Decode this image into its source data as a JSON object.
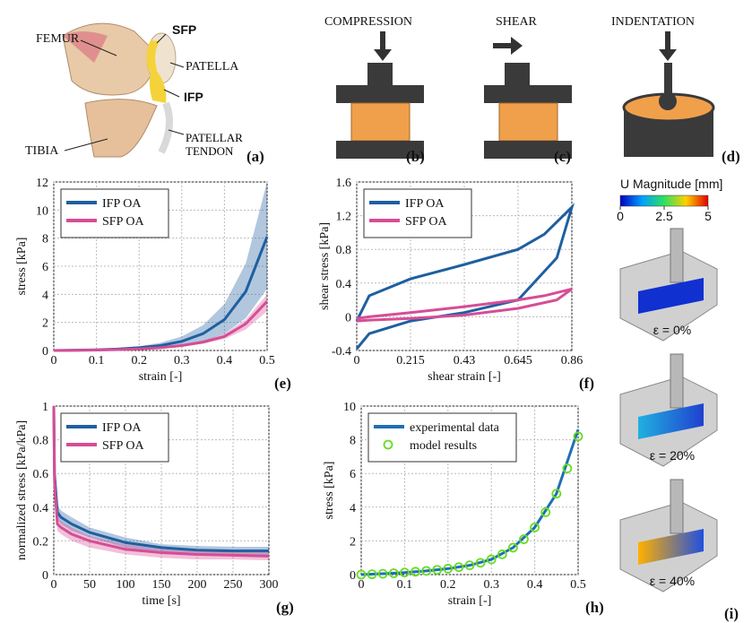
{
  "figure": {
    "a": {
      "femur": "FEMUR",
      "sfp": "SFP",
      "patella": "PATELLA",
      "ifp": "IFP",
      "tibia": "TIBIA",
      "tendon": "PATELLAR TENDON",
      "panel_label": "(a)"
    },
    "b": {
      "title": "COMPRESSION",
      "panel_label": "(b)"
    },
    "c": {
      "title": "SHEAR",
      "panel_label": "(c)"
    },
    "d": {
      "title": "INDENTATION",
      "panel_label": "(d)"
    },
    "i": {
      "colorbar_title": "U Magnitude [mm]",
      "clim": [
        0,
        5
      ],
      "cticks": [
        0,
        2.5,
        5
      ],
      "labels": [
        "ε = 0%",
        "ε = 20%",
        "ε = 40%"
      ],
      "panel_label": "(i)"
    }
  },
  "chart_data": [
    {
      "type": "line",
      "panel_label": "(e)",
      "xlabel": "strain [-]",
      "ylabel": "stress [kPa]",
      "grid": true,
      "legend": "upper left",
      "x": [
        0,
        0.05,
        0.1,
        0.15,
        0.2,
        0.25,
        0.3,
        0.35,
        0.4,
        0.45,
        0.5
      ],
      "xlim": [
        0,
        0.5
      ],
      "xticks": [
        0,
        0.1,
        0.2,
        0.3,
        0.4,
        0.5
      ],
      "ylim": [
        0,
        12
      ],
      "yticks": [
        0,
        2,
        4,
        6,
        8,
        10,
        12
      ],
      "series": [
        {
          "name": "IFP OA",
          "color": "#1f5fa0",
          "values": [
            0,
            0.02,
            0.05,
            0.1,
            0.2,
            0.35,
            0.65,
            1.2,
            2.2,
            4.2,
            8.1
          ],
          "lower": [
            0,
            0.01,
            0.03,
            0.06,
            0.12,
            0.2,
            0.35,
            0.65,
            1.2,
            2.3,
            4.4
          ],
          "upper": [
            0,
            0.03,
            0.08,
            0.15,
            0.3,
            0.55,
            1.0,
            1.8,
            3.3,
            6.2,
            12
          ]
        },
        {
          "name": "SFP OA",
          "color": "#d64d96",
          "values": [
            0,
            0.01,
            0.03,
            0.06,
            0.11,
            0.2,
            0.35,
            0.6,
            1.0,
            1.9,
            3.5
          ],
          "lower": [
            0,
            0.01,
            0.02,
            0.05,
            0.09,
            0.16,
            0.28,
            0.48,
            0.82,
            1.5,
            2.8
          ],
          "upper": [
            0,
            0.02,
            0.04,
            0.08,
            0.14,
            0.24,
            0.42,
            0.72,
            1.2,
            2.2,
            4.0
          ]
        }
      ]
    },
    {
      "type": "line",
      "panel_label": "(f)",
      "xlabel": "shear strain [-]",
      "ylabel": "shear stress [kPa]",
      "grid": true,
      "legend": "upper left",
      "xlim": [
        0,
        0.86
      ],
      "xticks": [
        0,
        0.215,
        0.43,
        0.645,
        0.86
      ],
      "ylim": [
        -0.4,
        1.6
      ],
      "yticks": [
        -0.4,
        0,
        0.4,
        0.8,
        1.2,
        1.6
      ],
      "series": [
        {
          "name": "IFP OA",
          "color": "#1f5fa0",
          "x": [
            0,
            0.05,
            0.215,
            0.43,
            0.645,
            0.75,
            0.86,
            0.8,
            0.645,
            0.43,
            0.215,
            0.05,
            0
          ],
          "values": [
            -0.05,
            0.25,
            0.45,
            0.62,
            0.8,
            0.98,
            1.3,
            0.7,
            0.2,
            0.05,
            -0.05,
            -0.2,
            -0.38
          ]
        },
        {
          "name": "SFP OA",
          "color": "#d64d96",
          "x": [
            0,
            0.05,
            0.215,
            0.43,
            0.645,
            0.75,
            0.86,
            0.8,
            0.645,
            0.43,
            0.215,
            0.05,
            0
          ],
          "values": [
            -0.02,
            0,
            0.05,
            0.12,
            0.2,
            0.25,
            0.33,
            0.2,
            0.1,
            0.02,
            -0.02,
            -0.04,
            -0.05
          ]
        }
      ]
    },
    {
      "type": "line",
      "panel_label": "(g)",
      "xlabel": "time [s]",
      "ylabel": "normalized stress [kPa/kPa]",
      "grid": true,
      "legend": "upper left",
      "x": [
        0,
        1,
        5,
        10,
        25,
        50,
        100,
        150,
        200,
        250,
        300
      ],
      "xlim": [
        0,
        300
      ],
      "xticks": [
        0,
        50,
        100,
        150,
        200,
        250,
        300
      ],
      "ylim": [
        0,
        1
      ],
      "yticks": [
        0,
        0.2,
        0.4,
        0.6,
        0.8,
        1
      ],
      "series": [
        {
          "name": "IFP OA",
          "color": "#1f5fa0",
          "values": [
            1,
            0.6,
            0.37,
            0.34,
            0.3,
            0.25,
            0.19,
            0.16,
            0.145,
            0.14,
            0.14
          ],
          "lower": [
            1,
            0.55,
            0.33,
            0.3,
            0.26,
            0.22,
            0.16,
            0.13,
            0.12,
            0.115,
            0.115
          ],
          "upper": [
            1,
            0.65,
            0.41,
            0.38,
            0.34,
            0.28,
            0.22,
            0.18,
            0.17,
            0.165,
            0.165
          ]
        },
        {
          "name": "SFP OA",
          "color": "#d64d96",
          "values": [
            1,
            0.55,
            0.3,
            0.28,
            0.24,
            0.2,
            0.15,
            0.13,
            0.12,
            0.115,
            0.11
          ],
          "lower": [
            1,
            0.5,
            0.26,
            0.24,
            0.2,
            0.16,
            0.12,
            0.1,
            0.09,
            0.09,
            0.085
          ],
          "upper": [
            1,
            0.6,
            0.34,
            0.32,
            0.28,
            0.23,
            0.18,
            0.15,
            0.14,
            0.135,
            0.135
          ]
        }
      ]
    },
    {
      "type": "line",
      "panel_label": "(h)",
      "xlabel": "strain [-]",
      "ylabel": "stress [kPa]",
      "grid": true,
      "legend": "upper left",
      "xlim": [
        0,
        0.5
      ],
      "xticks": [
        0,
        0.1,
        0.2,
        0.3,
        0.4,
        0.5
      ],
      "ylim": [
        0,
        10
      ],
      "yticks": [
        0,
        2,
        4,
        6,
        8,
        10
      ],
      "series": [
        {
          "name": "experimental data",
          "color": "#1f6fb5",
          "style": "line",
          "x": [
            0,
            0.05,
            0.1,
            0.15,
            0.2,
            0.25,
            0.3,
            0.35,
            0.4,
            0.45,
            0.5
          ],
          "values": [
            0,
            0.05,
            0.12,
            0.22,
            0.35,
            0.55,
            0.9,
            1.6,
            2.8,
            4.8,
            8.6
          ]
        },
        {
          "name": "model results",
          "color": "#66dd22",
          "style": "markers",
          "x": [
            0,
            0.025,
            0.05,
            0.075,
            0.1,
            0.125,
            0.15,
            0.175,
            0.2,
            0.225,
            0.25,
            0.275,
            0.3,
            0.325,
            0.35,
            0.375,
            0.4,
            0.425,
            0.45,
            0.475,
            0.5
          ],
          "values": [
            0,
            0.02,
            0.05,
            0.08,
            0.12,
            0.17,
            0.22,
            0.28,
            0.35,
            0.44,
            0.55,
            0.7,
            0.9,
            1.2,
            1.6,
            2.1,
            2.8,
            3.7,
            4.8,
            6.3,
            8.2
          ]
        }
      ]
    }
  ]
}
